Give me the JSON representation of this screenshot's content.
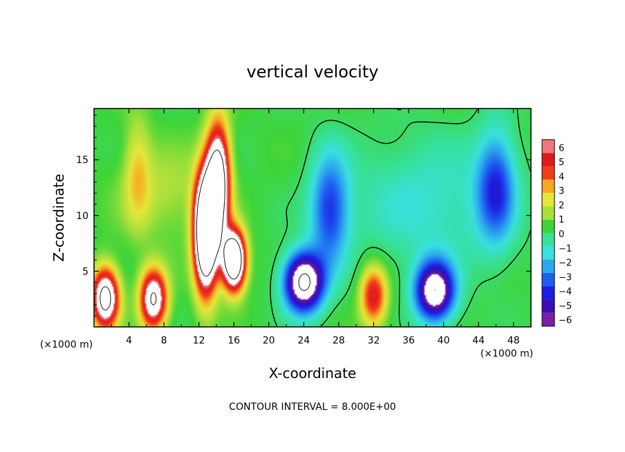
{
  "chart_data": {
    "type": "heatmap",
    "title": "vertical velocity",
    "xlabel": "X-coordinate",
    "ylabel": "Z-coordinate",
    "x_unit_left": "(×1000 m)",
    "x_unit_right": "(×1000 m)",
    "xlim": [
      0,
      50
    ],
    "ylim": [
      0,
      19.6
    ],
    "x_ticks": [
      4,
      8,
      12,
      16,
      20,
      24,
      28,
      32,
      36,
      40,
      44,
      48
    ],
    "y_ticks": [
      5,
      10,
      15
    ],
    "colorbar": {
      "min": -6,
      "max": 6,
      "ticks": [
        6,
        5,
        4,
        3,
        2,
        1,
        0,
        -1,
        -2,
        -3,
        -4,
        -5,
        -6
      ],
      "colors": [
        "#7a1fa8",
        "#3b0fb0",
        "#1d1de0",
        "#1e5ff2",
        "#2ca6ee",
        "#38e0df",
        "#38e098",
        "#3ed438",
        "#a8e03a",
        "#e6e63a",
        "#f5a820",
        "#f23c1c",
        "#e01a1a",
        "#f07878"
      ]
    },
    "features": [
      {
        "x": 1.3,
        "z": 2.6,
        "w": 9,
        "shape": "updraft"
      },
      {
        "x": 6.8,
        "z": 2.5,
        "w": 8,
        "shape": "updraft"
      },
      {
        "x": 12.8,
        "z": 8.5,
        "w": 14,
        "shape": "updraft"
      },
      {
        "x": 14.2,
        "z": 13.0,
        "w": 10,
        "shape": "updraft"
      },
      {
        "x": 16.0,
        "z": 6.0,
        "w": 12,
        "shape": "updraft"
      },
      {
        "x": 24.0,
        "z": 4.0,
        "w": -9,
        "shape": "downdraft"
      },
      {
        "x": 32.0,
        "z": 2.8,
        "w": 5,
        "shape": "updraft"
      },
      {
        "x": 39.0,
        "z": 3.2,
        "w": -8,
        "shape": "downdraft"
      },
      {
        "x": 46.0,
        "z": 12.5,
        "w": -4,
        "shape": "downdraft"
      },
      {
        "x": 27.0,
        "z": 10.5,
        "w": -4,
        "shape": "downdraft"
      },
      {
        "x": 5.0,
        "z": 14.0,
        "w": 2,
        "shape": "updraft"
      }
    ],
    "contour_interval_label": "CONTOUR INTERVAL = 8.000E+00"
  }
}
